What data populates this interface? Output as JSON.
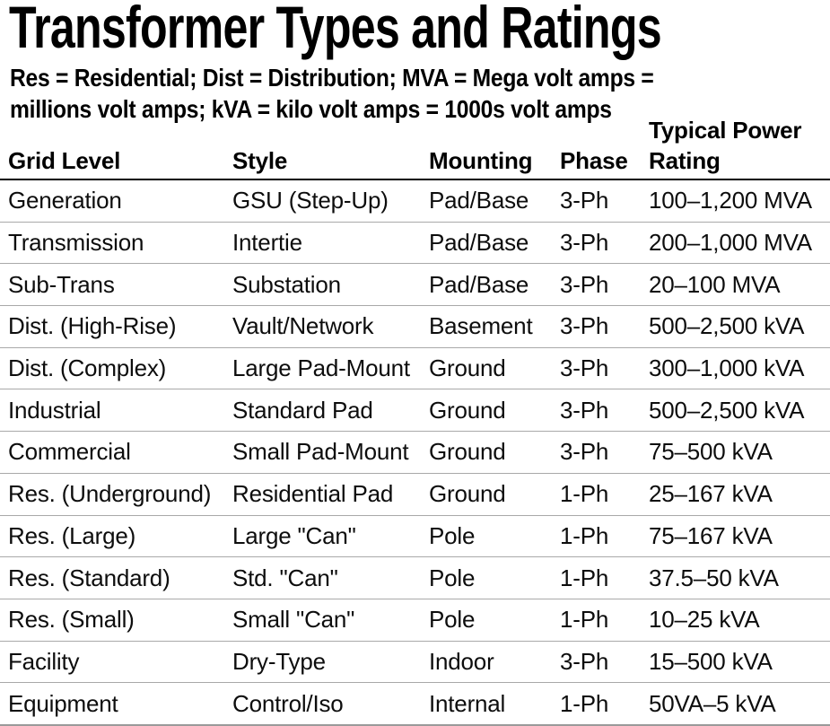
{
  "title": "Transformer Types and Ratings",
  "subtitle": {
    "line1": "Res = Residential; Dist = Distribution; MVA = Mega volt amps =",
    "line2": "millions volt amps; kVA = kilo volt amps = 1000s volt amps"
  },
  "table": {
    "columns": [
      "Grid Level",
      "Style",
      "Mounting",
      "Phase",
      "Typical Power Rating"
    ],
    "row_keys": [
      "grid_level",
      "style",
      "mounting",
      "phase",
      "rating"
    ],
    "rows": [
      {
        "grid_level": "Generation",
        "style": "GSU (Step-Up)",
        "mounting": "Pad/Base",
        "phase": "3-Ph",
        "rating": "100–1,200 MVA"
      },
      {
        "grid_level": "Transmission",
        "style": "Intertie",
        "mounting": "Pad/Base",
        "phase": "3-Ph",
        "rating": "200–1,000 MVA"
      },
      {
        "grid_level": "Sub-Trans",
        "style": "Substation",
        "mounting": "Pad/Base",
        "phase": "3-Ph",
        "rating": "20–100 MVA"
      },
      {
        "grid_level": "Dist. (High-Rise)",
        "style": "Vault/Network",
        "mounting": "Basement",
        "phase": "3-Ph",
        "rating": "500–2,500 kVA"
      },
      {
        "grid_level": "Dist. (Complex)",
        "style": "Large Pad-Mount",
        "mounting": "Ground",
        "phase": "3-Ph",
        "rating": "300–1,000 kVA"
      },
      {
        "grid_level": "Industrial",
        "style": "Standard Pad",
        "mounting": "Ground",
        "phase": "3-Ph",
        "rating": "500–2,500 kVA"
      },
      {
        "grid_level": "Commercial",
        "style": "Small Pad-Mount",
        "mounting": "Ground",
        "phase": "3-Ph",
        "rating": "75–500 kVA"
      },
      {
        "grid_level": "Res. (Underground)",
        "style": "Residential Pad",
        "mounting": "Ground",
        "phase": "1-Ph",
        "rating": "25–167 kVA"
      },
      {
        "grid_level": "Res. (Large)",
        "style": "Large \"Can\"",
        "mounting": "Pole",
        "phase": "1-Ph",
        "rating": "75–167 kVA"
      },
      {
        "grid_level": "Res. (Standard)",
        "style": "Std. \"Can\"",
        "mounting": "Pole",
        "phase": "1-Ph",
        "rating": "37.5–50 kVA"
      },
      {
        "grid_level": "Res. (Small)",
        "style": "Small \"Can\"",
        "mounting": "Pole",
        "phase": "1-Ph",
        "rating": "10–25 kVA"
      },
      {
        "grid_level": "Facility",
        "style": "Dry-Type",
        "mounting": "Indoor",
        "phase": "3-Ph",
        "rating": "15–500 kVA"
      },
      {
        "grid_level": "Equipment",
        "style": "Control/Iso",
        "mounting": "Internal",
        "phase": "1-Ph",
        "rating": "50VA–5 kVA"
      }
    ]
  },
  "colors": {
    "text": "#000000",
    "header_rule": "#000000",
    "row_rule": "#a9a9a9",
    "bottom_rule": "#9a9a9a",
    "background": "#ffffff"
  }
}
